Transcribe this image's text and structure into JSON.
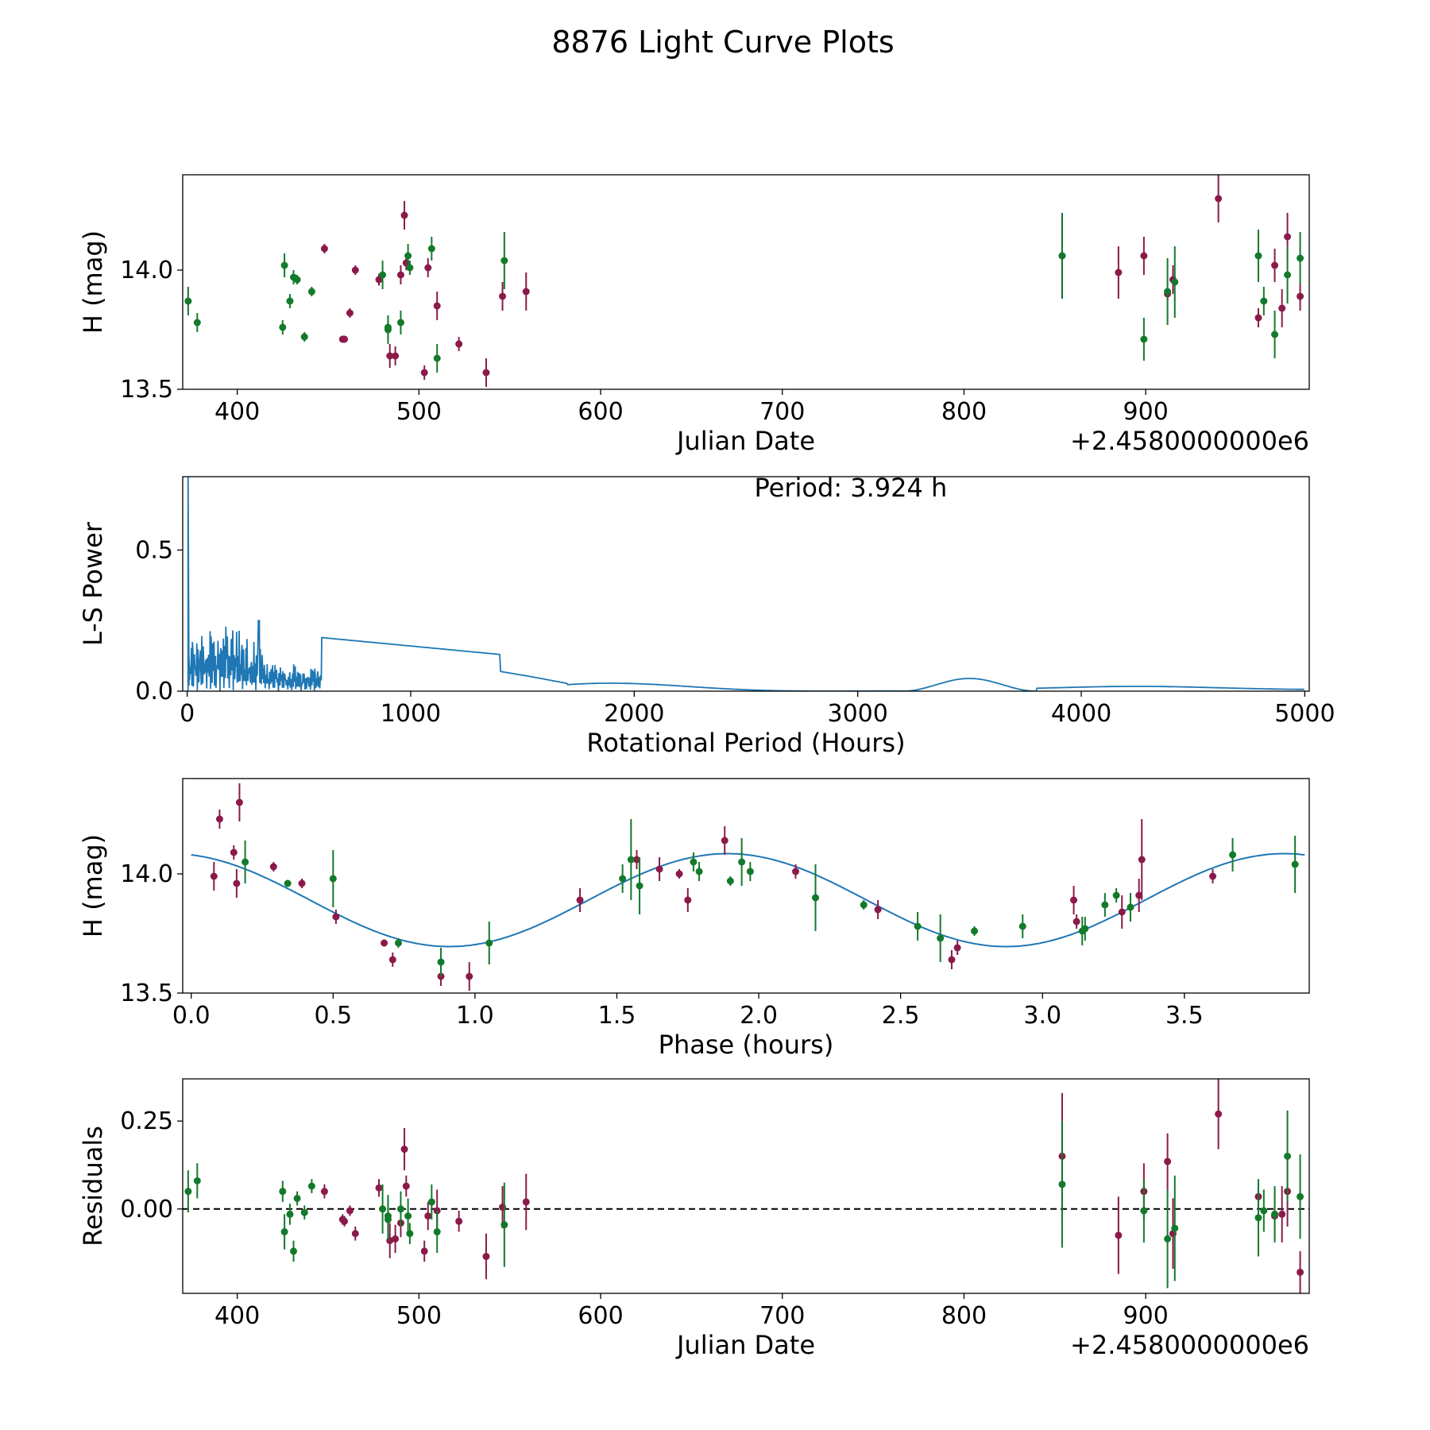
{
  "suptitle": "8876 Light Curve Plots",
  "colors": {
    "magenta": "#8B1A4A",
    "green": "#137A2B",
    "curve": "#1f77b4",
    "frame": "#000000"
  },
  "chart_data": [
    {
      "id": "lightcurve",
      "type": "scatter",
      "xlabel": "Julian Date",
      "ylabel": "H (mag)",
      "xlim": [
        370,
        990
      ],
      "ylim": [
        13.5,
        14.4
      ],
      "xticks": [
        400,
        500,
        600,
        700,
        800,
        900
      ],
      "xtick_labels": [
        "400",
        "500",
        "600",
        "700",
        "800",
        "900"
      ],
      "yticks": [
        13.5,
        14.0
      ],
      "ytick_labels": [
        "13.5",
        "14.0"
      ],
      "x_offset_label": "+2.4580000000e6",
      "series": [
        {
          "name": "magenta",
          "points": [
            [
              448,
              14.09,
              0.02
            ],
            [
              458,
              13.71,
              0.015
            ],
            [
              459,
              13.71,
              0.015
            ],
            [
              462,
              13.82,
              0.02
            ],
            [
              465,
              14.0,
              0.02
            ],
            [
              478,
              13.96,
              0.025
            ],
            [
              484,
              13.64,
              0.05
            ],
            [
              487,
              13.64,
              0.04
            ],
            [
              490,
              13.98,
              0.04
            ],
            [
              492,
              14.23,
              0.06
            ],
            [
              493,
              14.03,
              0.03
            ],
            [
              503,
              13.57,
              0.03
            ],
            [
              505,
              14.01,
              0.04
            ],
            [
              510,
              13.85,
              0.06
            ],
            [
              522,
              13.69,
              0.03
            ],
            [
              537,
              13.57,
              0.06
            ],
            [
              546,
              13.89,
              0.06
            ],
            [
              559,
              13.91,
              0.08
            ],
            [
              854,
              14.06,
              0.18
            ],
            [
              885,
              13.99,
              0.11
            ],
            [
              899,
              14.06,
              0.08
            ],
            [
              912,
              13.9,
              0.03
            ],
            [
              915,
              13.96,
              0.06
            ],
            [
              940,
              14.3,
              0.1
            ],
            [
              962,
              13.8,
              0.04
            ],
            [
              971,
              14.02,
              0.07
            ],
            [
              975,
              13.84,
              0.08
            ],
            [
              978,
              14.14,
              0.1
            ],
            [
              985,
              13.89,
              0.06
            ]
          ]
        },
        {
          "name": "green",
          "points": [
            [
              373,
              13.87,
              0.06
            ],
            [
              378,
              13.78,
              0.04
            ],
            [
              425,
              13.76,
              0.03
            ],
            [
              426,
              14.02,
              0.05
            ],
            [
              429,
              13.87,
              0.03
            ],
            [
              431,
              13.97,
              0.03
            ],
            [
              433,
              13.96,
              0.02
            ],
            [
              437,
              13.72,
              0.02
            ],
            [
              441,
              13.91,
              0.02
            ],
            [
              480,
              13.98,
              0.06
            ],
            [
              483,
              13.76,
              0.05
            ],
            [
              483,
              13.75,
              0.06
            ],
            [
              490,
              13.78,
              0.05
            ],
            [
              494,
              14.06,
              0.05
            ],
            [
              495,
              14.01,
              0.03
            ],
            [
              507,
              14.09,
              0.05
            ],
            [
              510,
              13.63,
              0.06
            ],
            [
              547,
              14.04,
              0.12
            ],
            [
              854,
              14.06,
              0.18
            ],
            [
              899,
              13.71,
              0.09
            ],
            [
              912,
              13.91,
              0.14
            ],
            [
              916,
              13.95,
              0.15
            ],
            [
              962,
              14.06,
              0.11
            ],
            [
              965,
              13.87,
              0.06
            ],
            [
              971,
              13.73,
              0.1
            ],
            [
              978,
              13.98,
              0.12
            ],
            [
              985,
              14.05,
              0.11
            ]
          ]
        }
      ]
    },
    {
      "id": "periodogram",
      "type": "line",
      "xlabel": "Rotational Period (Hours)",
      "ylabel": "L-S Power",
      "xlim": [
        -20,
        5020
      ],
      "ylim": [
        0,
        0.76
      ],
      "xticks": [
        0,
        1000,
        2000,
        3000,
        4000,
        5000
      ],
      "xtick_labels": [
        "0",
        "1000",
        "2000",
        "3000",
        "4000",
        "5000"
      ],
      "yticks": [
        0.0,
        0.5
      ],
      "ytick_labels": [
        "0.0",
        "0.5"
      ],
      "annotation": "Period: 3.924 h",
      "series": [
        {
          "name": "L-S power",
          "peak_x": 3.924,
          "peak_y": 0.78
        }
      ]
    },
    {
      "id": "phasefold",
      "type": "scatter",
      "xlabel": "Phase (hours)",
      "ylabel": "H (mag)",
      "xlim": [
        -0.03,
        3.94
      ],
      "ylim": [
        13.5,
        14.4
      ],
      "xticks": [
        0.0,
        0.5,
        1.0,
        1.5,
        2.0,
        2.5,
        3.0,
        3.5
      ],
      "xtick_labels": [
        "0.0",
        "0.5",
        "1.0",
        "1.5",
        "2.0",
        "2.5",
        "3.0",
        "3.5"
      ],
      "yticks": [
        13.5,
        14.0
      ],
      "ytick_labels": [
        "13.5",
        "14.0"
      ],
      "fit": {
        "mean": 13.89,
        "amplitude": 0.195,
        "period": 1.962,
        "peak_phase": 1.89
      },
      "series": [
        {
          "name": "magenta",
          "points": [
            [
              0.08,
              13.99,
              0.06
            ],
            [
              0.1,
              14.23,
              0.04
            ],
            [
              0.15,
              14.09,
              0.03
            ],
            [
              0.16,
              13.96,
              0.06
            ],
            [
              0.17,
              14.3,
              0.08
            ],
            [
              0.29,
              14.03,
              0.02
            ],
            [
              0.39,
              13.96,
              0.02
            ],
            [
              0.51,
              13.82,
              0.03
            ],
            [
              0.68,
              13.71,
              0.015
            ],
            [
              0.71,
              13.64,
              0.03
            ],
            [
              0.88,
              13.57,
              0.04
            ],
            [
              0.98,
              13.57,
              0.06
            ],
            [
              1.37,
              13.89,
              0.05
            ],
            [
              1.57,
              14.06,
              0.04
            ],
            [
              1.65,
              14.02,
              0.05
            ],
            [
              1.72,
              14.0,
              0.02
            ],
            [
              1.75,
              13.89,
              0.05
            ],
            [
              1.88,
              14.14,
              0.06
            ],
            [
              2.13,
              14.01,
              0.03
            ],
            [
              2.42,
              13.85,
              0.04
            ],
            [
              2.68,
              13.64,
              0.04
            ],
            [
              2.7,
              13.69,
              0.03
            ],
            [
              3.11,
              13.89,
              0.06
            ],
            [
              3.12,
              13.8,
              0.03
            ],
            [
              3.28,
              13.84,
              0.07
            ],
            [
              3.34,
              13.91,
              0.07
            ],
            [
              3.35,
              14.06,
              0.17
            ],
            [
              3.6,
              13.99,
              0.03
            ]
          ]
        },
        {
          "name": "green",
          "points": [
            [
              0.19,
              14.05,
              0.09
            ],
            [
              0.34,
              13.96,
              0.015
            ],
            [
              0.5,
              13.98,
              0.12
            ],
            [
              0.73,
              13.71,
              0.02
            ],
            [
              0.88,
              13.63,
              0.06
            ],
            [
              1.05,
              13.71,
              0.09
            ],
            [
              1.52,
              13.98,
              0.06
            ],
            [
              1.55,
              14.06,
              0.17
            ],
            [
              1.58,
              13.95,
              0.12
            ],
            [
              1.77,
              14.05,
              0.04
            ],
            [
              1.79,
              14.01,
              0.04
            ],
            [
              1.9,
              13.97,
              0.02
            ],
            [
              1.94,
              14.05,
              0.1
            ],
            [
              1.97,
              14.01,
              0.04
            ],
            [
              2.2,
              13.9,
              0.14
            ],
            [
              2.37,
              13.87,
              0.02
            ],
            [
              2.56,
              13.78,
              0.06
            ],
            [
              2.64,
              13.73,
              0.1
            ],
            [
              2.76,
              13.76,
              0.02
            ],
            [
              2.93,
              13.78,
              0.05
            ],
            [
              3.14,
              13.76,
              0.06
            ],
            [
              3.15,
              13.77,
              0.05
            ],
            [
              3.22,
              13.87,
              0.05
            ],
            [
              3.26,
              13.91,
              0.03
            ],
            [
              3.31,
              13.86,
              0.06
            ],
            [
              3.67,
              14.08,
              0.07
            ],
            [
              3.89,
              14.04,
              0.12
            ]
          ]
        }
      ]
    },
    {
      "id": "residuals",
      "type": "scatter",
      "xlabel": "Julian Date",
      "ylabel": "Residuals",
      "xlim": [
        370,
        990
      ],
      "ylim": [
        -0.24,
        0.37
      ],
      "xticks": [
        400,
        500,
        600,
        700,
        800,
        900
      ],
      "xtick_labels": [
        "400",
        "500",
        "600",
        "700",
        "800",
        "900"
      ],
      "yticks": [
        0.0,
        0.25
      ],
      "ytick_labels": [
        "0.00",
        "0.25"
      ],
      "x_offset_label": "+2.4580000000e6",
      "zero_line": 0.0,
      "series": [
        {
          "name": "magenta",
          "points": [
            [
              448,
              0.05,
              0.02
            ],
            [
              458,
              -0.03,
              0.015
            ],
            [
              459,
              -0.035,
              0.015
            ],
            [
              462,
              -0.005,
              0.015
            ],
            [
              465,
              -0.07,
              0.02
            ],
            [
              478,
              0.06,
              0.025
            ],
            [
              484,
              -0.09,
              0.05
            ],
            [
              487,
              -0.085,
              0.04
            ],
            [
              490,
              -0.04,
              0.04
            ],
            [
              492,
              0.17,
              0.06
            ],
            [
              493,
              0.065,
              0.03
            ],
            [
              503,
              -0.12,
              0.03
            ],
            [
              505,
              -0.02,
              0.04
            ],
            [
              510,
              -0.005,
              0.06
            ],
            [
              522,
              -0.035,
              0.03
            ],
            [
              537,
              -0.135,
              0.065
            ],
            [
              546,
              0.005,
              0.06
            ],
            [
              559,
              0.02,
              0.08
            ],
            [
              854,
              0.15,
              0.18
            ],
            [
              885,
              -0.075,
              0.11
            ],
            [
              899,
              0.05,
              0.08
            ],
            [
              912,
              0.135,
              0.08
            ],
            [
              915,
              -0.07,
              0.1
            ],
            [
              940,
              0.27,
              0.1
            ],
            [
              962,
              0.035,
              0.04
            ],
            [
              971,
              -0.02,
              0.07
            ],
            [
              975,
              -0.015,
              0.08
            ],
            [
              978,
              0.05,
              0.1
            ],
            [
              985,
              -0.18,
              0.06
            ]
          ]
        },
        {
          "name": "green",
          "points": [
            [
              373,
              0.05,
              0.06
            ],
            [
              378,
              0.08,
              0.05
            ],
            [
              425,
              0.05,
              0.03
            ],
            [
              426,
              -0.065,
              0.05
            ],
            [
              429,
              -0.015,
              0.03
            ],
            [
              431,
              -0.12,
              0.03
            ],
            [
              433,
              0.03,
              0.02
            ],
            [
              437,
              -0.01,
              0.02
            ],
            [
              441,
              0.065,
              0.02
            ],
            [
              480,
              0.0,
              0.07
            ],
            [
              483,
              -0.02,
              0.06
            ],
            [
              483,
              -0.03,
              0.06
            ],
            [
              490,
              0.0,
              0.05
            ],
            [
              494,
              -0.02,
              0.05
            ],
            [
              495,
              -0.07,
              0.03
            ],
            [
              507,
              0.02,
              0.05
            ],
            [
              510,
              -0.065,
              0.06
            ],
            [
              547,
              -0.045,
              0.12
            ],
            [
              854,
              0.07,
              0.18
            ],
            [
              899,
              -0.005,
              0.09
            ],
            [
              912,
              -0.085,
              0.14
            ],
            [
              916,
              -0.055,
              0.15
            ],
            [
              962,
              -0.025,
              0.11
            ],
            [
              965,
              -0.005,
              0.06
            ],
            [
              971,
              -0.015,
              0.08
            ],
            [
              978,
              0.15,
              0.13
            ],
            [
              985,
              0.035,
              0.12
            ]
          ]
        }
      ]
    }
  ]
}
